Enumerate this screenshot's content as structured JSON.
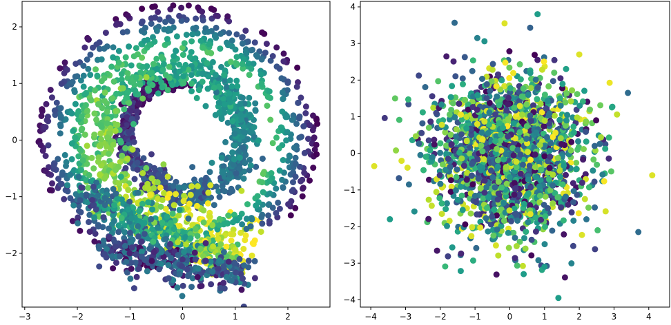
{
  "chart_data": [
    {
      "type": "scatter",
      "title": "",
      "xlabel": "",
      "ylabel": "",
      "xlim": [
        -3.05,
        2.8
      ],
      "ylim": [
        -2.95,
        2.45
      ],
      "xticks": [
        -3,
        -2,
        -1,
        0,
        1,
        2
      ],
      "yticks": [
        -2,
        -1,
        0,
        1,
        2
      ],
      "xtick_labels": [
        "−3",
        "−2",
        "−1",
        "0",
        "1",
        "2"
      ],
      "ytick_labels": [
        "−2",
        "−1",
        "0",
        "1",
        "2"
      ],
      "grid": false,
      "legend": "none",
      "colormap": "viridis",
      "series": [
        {
          "description_shape": "spiral (swiss roll projection)",
          "points": [
            [
              0.0,
              1.0,
              0.0
            ],
            [
              -0.55,
              0.95,
              0.05
            ],
            [
              -0.95,
              0.6,
              0.1
            ],
            [
              -1.1,
              0.1,
              0.15
            ],
            [
              -0.95,
              -0.35,
              0.2
            ],
            [
              -0.55,
              -0.75,
              0.25
            ],
            [
              0.0,
              -0.95,
              0.3
            ],
            [
              0.6,
              -0.85,
              0.35
            ],
            [
              1.05,
              -0.45,
              0.4
            ],
            [
              1.2,
              0.1,
              0.45
            ],
            [
              1.05,
              0.65,
              0.5
            ],
            [
              0.6,
              1.05,
              0.55
            ],
            [
              0.0,
              1.25,
              0.6
            ],
            [
              -0.65,
              1.2,
              0.65
            ],
            [
              -1.25,
              0.85,
              0.7
            ],
            [
              -1.55,
              0.25,
              0.75
            ],
            [
              -1.45,
              -0.4,
              0.8
            ],
            [
              -1.05,
              -0.95,
              0.85
            ],
            [
              -0.4,
              -1.3,
              0.9
            ],
            [
              0.4,
              -1.5,
              0.95
            ],
            [
              1.2,
              -1.8,
              1.0
            ]
          ]
        }
      ]
    },
    {
      "type": "scatter",
      "title": "",
      "xlabel": "",
      "ylabel": "",
      "xlim": [
        -4.3,
        4.6
      ],
      "ylim": [
        -4.2,
        4.15
      ],
      "xticks": [
        -4,
        -3,
        -2,
        -1,
        0,
        1,
        2,
        3,
        4
      ],
      "yticks": [
        -4,
        -3,
        -2,
        -1,
        0,
        1,
        2,
        3,
        4
      ],
      "xtick_labels": [
        "−4",
        "−3",
        "−2",
        "−1",
        "0",
        "1",
        "2",
        "3",
        "4"
      ],
      "ytick_labels": [
        "−4",
        "−3",
        "−2",
        "−1",
        "0",
        "1",
        "2",
        "3",
        "4"
      ],
      "grid": false,
      "legend": "none",
      "colormap": "viridis",
      "series": [
        {
          "description_shape": "isotropic Gaussian blob, mixed colors",
          "points": [
            [
              0.8,
              3.8,
              0.55
            ],
            [
              -0.15,
              3.55,
              0.95
            ],
            [
              -3.9,
              -0.35,
              0.95
            ],
            [
              1.4,
              -3.95,
              0.55
            ],
            [
              4.1,
              -0.6,
              0.95
            ],
            [
              3.7,
              -2.15,
              0.35
            ],
            [
              3.4,
              1.65,
              0.35
            ],
            [
              -3.45,
              -1.8,
              0.55
            ],
            [
              -3.3,
              1.5,
              0.75
            ],
            [
              2.0,
              2.7,
              0.95
            ],
            [
              0.4,
              -3.3,
              0.55
            ],
            [
              1.0,
              -3.1,
              0.55
            ]
          ]
        }
      ]
    }
  ],
  "colors": {
    "viridis": [
      "#440154",
      "#482878",
      "#3e4989",
      "#31688e",
      "#26828e",
      "#1f9e89",
      "#35b779",
      "#6ece58",
      "#b5de2b",
      "#fde725"
    ],
    "axes": "#000000",
    "background": "#ffffff"
  }
}
